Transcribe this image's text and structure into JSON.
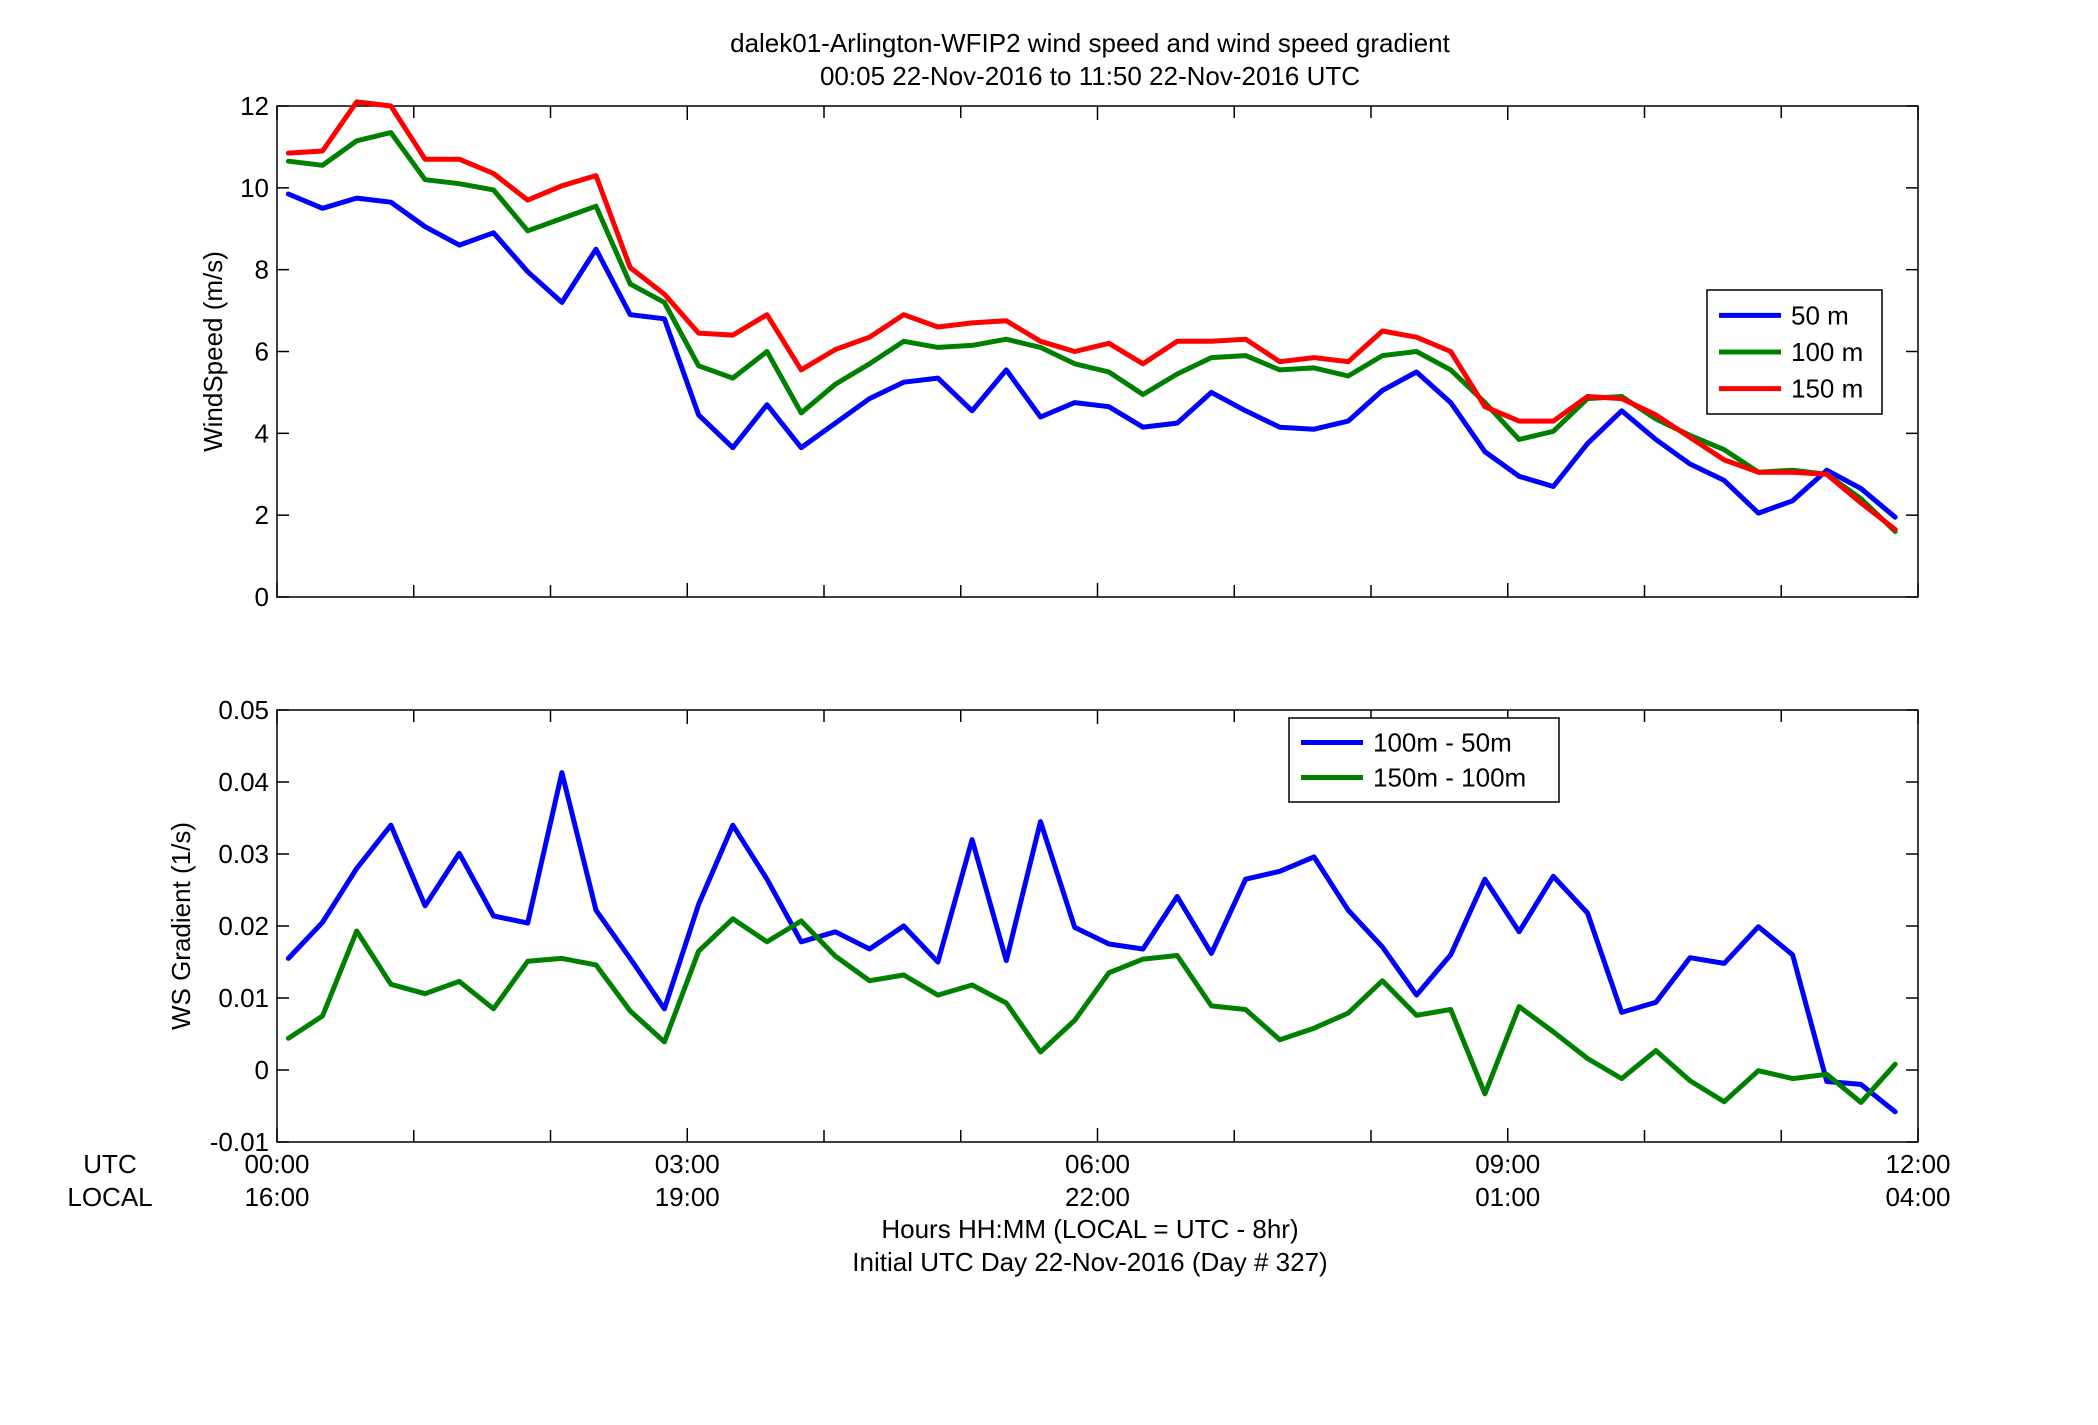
{
  "figure": {
    "title_line1": "dalek01-Arlington-WFIP2  wind speed and wind speed gradient",
    "title_line2": "00:05 22-Nov-2016 to 11:50 22-Nov-2016  UTC",
    "utc_row_label": "UTC",
    "local_row_label": "LOCAL",
    "xlabel_line1": "Hours HH:MM  (LOCAL = UTC - 8hr)",
    "xlabel_line2": "Initial UTC Day 22-Nov-2016 (Day # 327)",
    "xticks_utc": [
      "00:00",
      "03:00",
      "06:00",
      "09:00",
      "12:00"
    ],
    "xticks_local": [
      "16:00",
      "19:00",
      "22:00",
      "01:00",
      "04:00"
    ]
  },
  "chart_data": [
    {
      "type": "line",
      "ylabel": "WindSpeed (m/s)",
      "xlim": [
        0,
        12
      ],
      "ylim": [
        0,
        12
      ],
      "yticks": [
        0,
        2,
        4,
        6,
        8,
        10,
        12
      ],
      "ytick_labels": [
        "0",
        "2",
        "4",
        "6",
        "8",
        "10",
        "12"
      ],
      "legend_position": "right",
      "x": [
        0.083,
        0.333,
        0.583,
        0.833,
        1.083,
        1.333,
        1.583,
        1.833,
        2.083,
        2.333,
        2.583,
        2.833,
        3.083,
        3.333,
        3.583,
        3.833,
        4.083,
        4.333,
        4.583,
        4.833,
        5.083,
        5.333,
        5.583,
        5.833,
        6.083,
        6.333,
        6.583,
        6.833,
        7.083,
        7.333,
        7.583,
        7.833,
        8.083,
        8.333,
        8.583,
        8.833,
        9.083,
        9.333,
        9.583,
        9.833,
        10.083,
        10.333,
        10.583,
        10.833,
        11.083,
        11.333,
        11.583,
        11.833
      ],
      "series": [
        {
          "name": "50 m",
          "color": "#0000ff",
          "values": [
            9.85,
            9.5,
            9.75,
            9.65,
            9.05,
            8.6,
            8.9,
            7.95,
            7.2,
            8.5,
            6.9,
            6.8,
            4.45,
            3.65,
            4.7,
            3.65,
            4.25,
            4.85,
            5.25,
            5.35,
            4.55,
            5.55,
            4.4,
            4.75,
            4.65,
            4.15,
            4.25,
            5.0,
            4.55,
            4.15,
            4.1,
            4.3,
            5.05,
            5.5,
            4.75,
            3.55,
            2.95,
            2.7,
            3.75,
            4.55,
            3.85,
            3.25,
            2.85,
            2.05,
            2.35,
            3.1,
            2.65,
            1.95
          ]
        },
        {
          "name": "100 m",
          "color": "#008000",
          "values": [
            10.65,
            10.55,
            11.15,
            11.35,
            10.2,
            10.1,
            9.95,
            8.95,
            9.25,
            9.55,
            7.65,
            7.2,
            5.65,
            5.35,
            6.0,
            4.5,
            5.2,
            5.7,
            6.25,
            6.1,
            6.15,
            6.3,
            6.1,
            5.7,
            5.5,
            4.95,
            5.45,
            5.85,
            5.9,
            5.55,
            5.6,
            5.4,
            5.9,
            6.0,
            5.55,
            4.75,
            3.85,
            4.05,
            4.85,
            4.9,
            4.35,
            3.95,
            3.6,
            3.05,
            3.1,
            3.0,
            2.4,
            1.6
          ]
        },
        {
          "name": "150 m",
          "color": "#ff0000",
          "values": [
            10.85,
            10.9,
            12.1,
            12.0,
            10.7,
            10.7,
            10.35,
            9.7,
            10.05,
            10.3,
            8.05,
            7.4,
            6.45,
            6.4,
            6.9,
            5.55,
            6.05,
            6.35,
            6.9,
            6.6,
            6.7,
            6.75,
            6.25,
            6.0,
            6.2,
            5.7,
            6.25,
            6.25,
            6.3,
            5.75,
            5.85,
            5.75,
            6.5,
            6.35,
            6.0,
            4.65,
            4.3,
            4.3,
            4.9,
            4.85,
            4.45,
            3.9,
            3.35,
            3.05,
            3.05,
            3.0,
            2.3,
            1.65
          ]
        }
      ]
    },
    {
      "type": "line",
      "ylabel": "WS Gradient (1/s)",
      "xlim": [
        0,
        12
      ],
      "ylim": [
        -0.01,
        0.05
      ],
      "yticks": [
        -0.01,
        0,
        0.01,
        0.02,
        0.03,
        0.04,
        0.05
      ],
      "ytick_labels": [
        "-0.01",
        "0",
        "0.01",
        "0.02",
        "0.03",
        "0.04",
        "0.05"
      ],
      "legend_position": "top-right",
      "x": [
        0.083,
        0.333,
        0.583,
        0.833,
        1.083,
        1.333,
        1.583,
        1.833,
        2.083,
        2.333,
        2.583,
        2.833,
        3.083,
        3.333,
        3.583,
        3.833,
        4.083,
        4.333,
        4.583,
        4.833,
        5.083,
        5.333,
        5.583,
        5.833,
        6.083,
        6.333,
        6.583,
        6.833,
        7.083,
        7.333,
        7.583,
        7.833,
        8.083,
        8.333,
        8.583,
        8.833,
        9.083,
        9.333,
        9.583,
        9.833,
        10.083,
        10.333,
        10.583,
        10.833,
        11.083,
        11.333,
        11.583,
        11.833
      ],
      "series": [
        {
          "name": "100m - 50m",
          "color": "#0000ff",
          "values": [
            0.0155,
            0.0205,
            0.028,
            0.034,
            0.0228,
            0.0301,
            0.0214,
            0.0204,
            0.0413,
            0.0222,
            0.0155,
            0.0085,
            0.023,
            0.034,
            0.0265,
            0.0178,
            0.0192,
            0.0168,
            0.02,
            0.015,
            0.032,
            0.0152,
            0.0345,
            0.0198,
            0.0175,
            0.0168,
            0.0241,
            0.0162,
            0.0265,
            0.0276,
            0.0296,
            0.0222,
            0.0171,
            0.0104,
            0.016,
            0.0265,
            0.0192,
            0.0269,
            0.0218,
            0.008,
            0.0094,
            0.0156,
            0.0148,
            0.0199,
            0.016,
            -0.0016,
            -0.002,
            -0.0058
          ]
        },
        {
          "name": "150m - 100m",
          "color": "#008000",
          "values": [
            0.0044,
            0.0075,
            0.0193,
            0.0119,
            0.0106,
            0.0123,
            0.0085,
            0.0151,
            0.0155,
            0.0146,
            0.0082,
            0.0039,
            0.0165,
            0.021,
            0.0178,
            0.0207,
            0.0158,
            0.0124,
            0.0132,
            0.0104,
            0.0118,
            0.0093,
            0.0025,
            0.0069,
            0.0135,
            0.0154,
            0.0159,
            0.0089,
            0.0084,
            0.0042,
            0.0058,
            0.0079,
            0.0124,
            0.0076,
            0.0084,
            -0.0033,
            0.0088,
            0.0053,
            0.0016,
            -0.0012,
            0.0027,
            -0.0015,
            -0.0044,
            -0.0001,
            -0.0012,
            -0.0006,
            -0.0045,
            0.0008
          ]
        }
      ]
    }
  ]
}
